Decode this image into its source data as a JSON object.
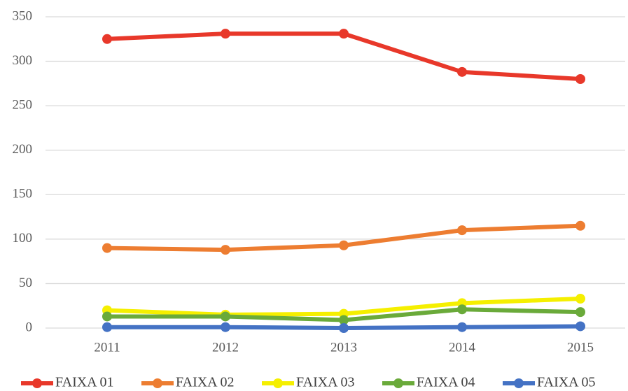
{
  "chart_data": {
    "type": "line",
    "categories": [
      "2011",
      "2012",
      "2013",
      "2014",
      "2015"
    ],
    "series": [
      {
        "name": "FAIXA 01",
        "color": "#e8382a",
        "values": [
          325,
          331,
          331,
          288,
          280
        ]
      },
      {
        "name": "FAIXA 02",
        "color": "#ed7d31",
        "values": [
          90,
          88,
          93,
          110,
          115
        ]
      },
      {
        "name": "FAIXA 03",
        "color": "#f5ef00",
        "values": [
          20,
          15,
          16,
          28,
          33
        ]
      },
      {
        "name": "FAIXA 04",
        "color": "#6aaa3a",
        "values": [
          13,
          13,
          9,
          21,
          18
        ]
      },
      {
        "name": "FAIXA 05",
        "color": "#4472c4",
        "values": [
          1,
          1,
          0,
          1,
          2
        ]
      }
    ],
    "ylim": [
      0,
      350
    ],
    "yticks": [
      0,
      50,
      100,
      150,
      200,
      250,
      300,
      350
    ],
    "grid": true,
    "legend": "bottom"
  }
}
